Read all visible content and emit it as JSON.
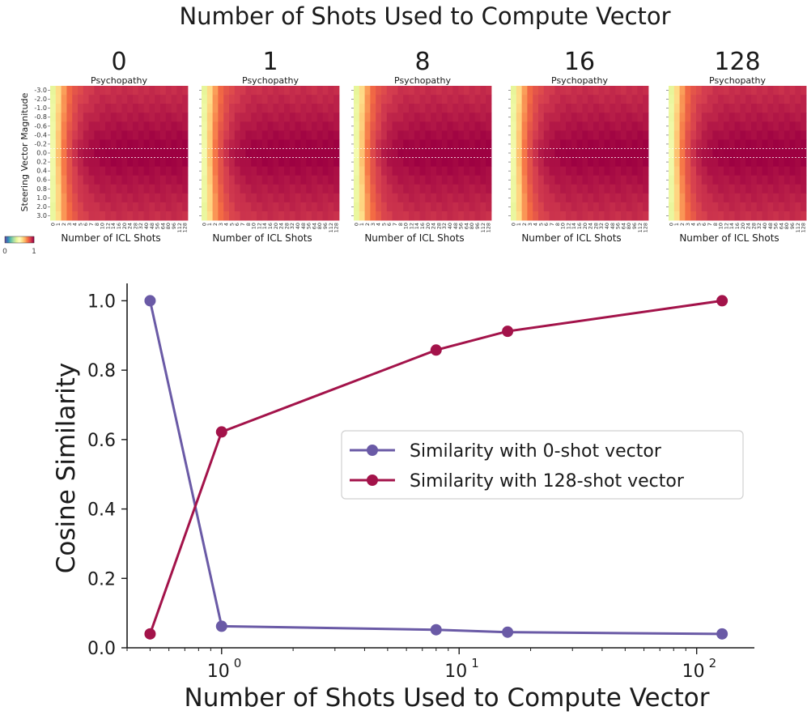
{
  "figure_title": "Number of Shots Used to Compute Vector",
  "colorbar": {
    "min_label": "0",
    "max_label": "1"
  },
  "chart_data": [
    {
      "type": "heatmap",
      "panels": [
        {
          "title": "0",
          "subtitle": "Psychopathy",
          "ramp": [
            0.55,
            0.45,
            0.8
          ]
        },
        {
          "title": "1",
          "subtitle": "Psychopathy",
          "ramp": [
            0.55,
            0.45,
            0.8
          ]
        },
        {
          "title": "8",
          "subtitle": "Psychopathy",
          "ramp": [
            0.55,
            0.45,
            0.8
          ]
        },
        {
          "title": "16",
          "subtitle": "Psychopathy",
          "ramp": [
            0.55,
            0.45,
            0.8
          ]
        },
        {
          "title": "128",
          "subtitle": "Psychopathy",
          "ramp": [
            0.55,
            0.45,
            0.8
          ]
        }
      ],
      "ylabel": "Steering Vector Magnitude",
      "xlabel": "Number of ICL Shots",
      "y_ticks": [
        "-3.0",
        "-2.0",
        "-1.0",
        "-0.8",
        "-0.6",
        "-0.4",
        "-0.2",
        "0.0",
        "0.2",
        "0.4",
        "0.6",
        "0.8",
        "1.0",
        "2.0",
        "3.0"
      ],
      "x_ticks": [
        "0",
        "1",
        "2",
        "3",
        "4",
        "5",
        "6",
        "7",
        "8",
        "10",
        "12",
        "14",
        "16",
        "20",
        "24",
        "28",
        "32",
        "40",
        "48",
        "56",
        "64",
        "80",
        "96",
        "112",
        "128"
      ],
      "colormap": "Spectral_r",
      "value_range": [
        0,
        1
      ],
      "zero_row_marker": "dashed"
    },
    {
      "type": "line",
      "xlabel": "Number of Shots Used to Compute Vector",
      "ylabel": "Cosine Similarity",
      "x_scale": "log",
      "x_tick_labels": [
        {
          "value": 1,
          "base": "10",
          "exp": "0"
        },
        {
          "value": 10,
          "base": "10",
          "exp": "1"
        },
        {
          "value": 100,
          "base": "10",
          "exp": "2"
        }
      ],
      "y_ticks": [
        "0.0",
        "0.2",
        "0.4",
        "0.6",
        "0.8",
        "1.0"
      ],
      "ylim": [
        0,
        1.05
      ],
      "x": [
        0.5,
        1,
        8,
        16,
        128
      ],
      "series": [
        {
          "name": "Similarity with 0-shot vector",
          "color": "#6a5aa6",
          "values": [
            1.0,
            0.062,
            0.052,
            0.045,
            0.04
          ]
        },
        {
          "name": "Similarity with 128-shot vector",
          "color": "#a3134a",
          "values": [
            0.04,
            0.622,
            0.858,
            0.912,
            1.0
          ]
        }
      ],
      "legend_position": "center-right"
    }
  ]
}
